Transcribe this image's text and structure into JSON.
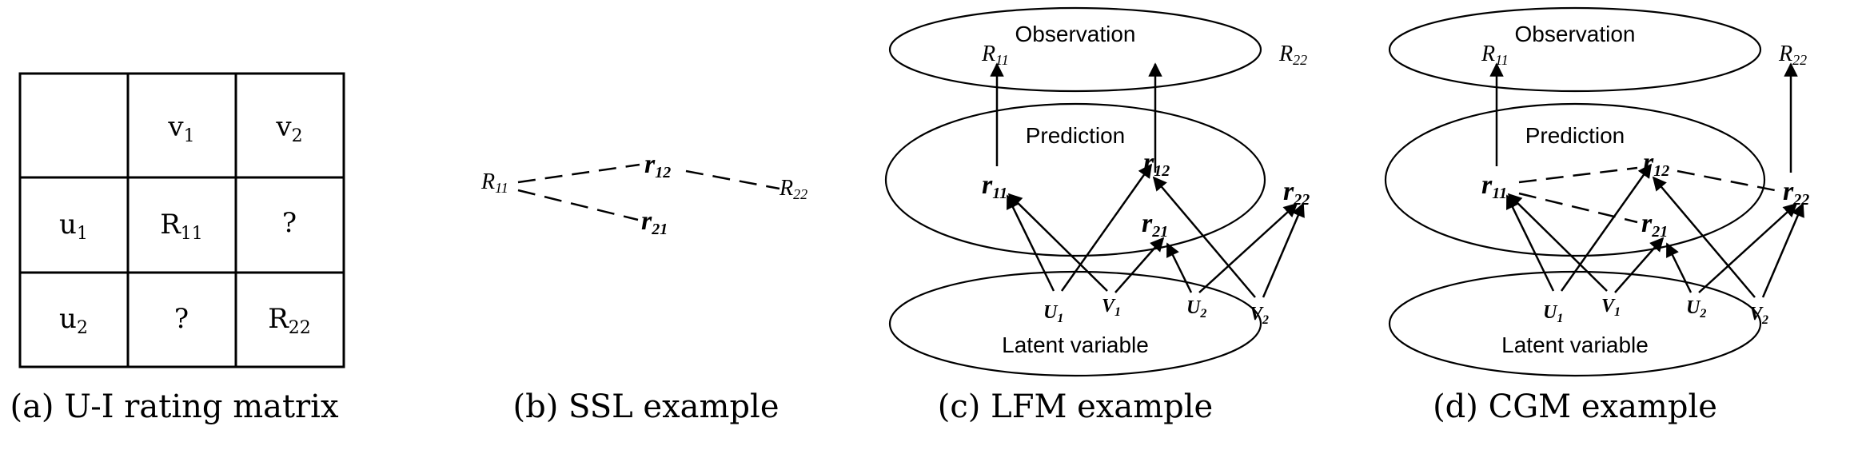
{
  "captions": {
    "a": "(a) U-I rating matrix",
    "b": "(b) SSL example",
    "c": "(c) LFM example",
    "d": "(d) CGM example"
  },
  "matrix": {
    "col_headers": {
      "v1": "v",
      "v1_sub": "1",
      "v2": "v",
      "v2_sub": "2"
    },
    "row_headers": {
      "u1": "u",
      "u1_sub": "1",
      "u2": "u",
      "u2_sub": "2"
    },
    "cells": {
      "r11": "R",
      "r11_sub": "11",
      "r12": "?",
      "r21": "?",
      "r22": "R",
      "r22_sub": "22"
    }
  },
  "ssl": {
    "R11": "R",
    "R11_sub": "11",
    "r12": "r",
    "r12_sub": "12",
    "r21": "r",
    "r21_sub": "21",
    "R22": "R",
    "R22_sub": "22"
  },
  "layers": {
    "observation": "Observation",
    "prediction": "Prediction",
    "latent": "Latent variable"
  },
  "nodes": {
    "R11": "R",
    "R11_sub": "11",
    "R22": "R",
    "R22_sub": "22",
    "r11": "r",
    "r11_sub": "11",
    "r12": "r",
    "r12_sub": "12",
    "r21": "r",
    "r21_sub": "21",
    "r22": "r",
    "r22_sub": "22",
    "U1": "U",
    "U1_sub": "1",
    "V1": "V",
    "V1_sub": "1",
    "U2": "U",
    "U2_sub": "2",
    "V2": "V",
    "V2_sub": "2"
  }
}
